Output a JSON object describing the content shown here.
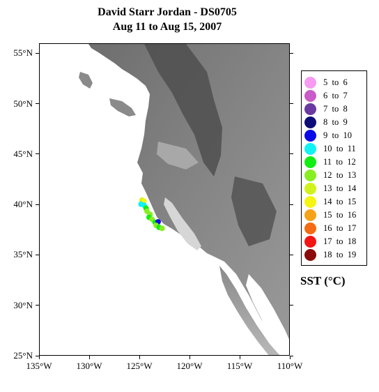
{
  "title": {
    "line1": "David Starr Jordan - DS0705",
    "line2": "Aug 11 to Aug 15, 2007"
  },
  "map": {
    "lon_range": [
      -135,
      -110
    ],
    "lat_range": [
      25,
      56
    ],
    "lat_ticks": [
      {
        "value": 55,
        "label": "55°N"
      },
      {
        "value": 50,
        "label": "50°N"
      },
      {
        "value": 45,
        "label": "45°N"
      },
      {
        "value": 40,
        "label": "40°N"
      },
      {
        "value": 35,
        "label": "35°N"
      },
      {
        "value": 30,
        "label": "30°N"
      },
      {
        "value": 25,
        "label": "25°N"
      }
    ],
    "lon_ticks": [
      {
        "value": -135,
        "label": "135°W"
      },
      {
        "value": -130,
        "label": "130°W"
      },
      {
        "value": -125,
        "label": "125°W"
      },
      {
        "value": -120,
        "label": "120°W"
      },
      {
        "value": -115,
        "label": "115°W"
      },
      {
        "value": -110,
        "label": "110°W"
      }
    ],
    "colors": {
      "ocean": "#ffffff",
      "land_low": "#c8c8c8",
      "land_mid": "#7a7a7a",
      "land_high": "#4a4a4a"
    }
  },
  "legend": {
    "items": [
      {
        "label": "5  to  6",
        "color": "#f79af2"
      },
      {
        "label": "6  to  7",
        "color": "#c95cc9"
      },
      {
        "label": "7  to  8",
        "color": "#6b3aa0"
      },
      {
        "label": "8  to  9",
        "color": "#0d0d7a"
      },
      {
        "label": "9  to  10",
        "color": "#0a0ae8"
      },
      {
        "label": "10  to  11",
        "color": "#11f2f2"
      },
      {
        "label": "11  to  12",
        "color": "#11ee11"
      },
      {
        "label": "12  to  13",
        "color": "#88ee22"
      },
      {
        "label": "13  to  14",
        "color": "#d2f21c"
      },
      {
        "label": "14  to  15",
        "color": "#f5f511"
      },
      {
        "label": "15  to  16",
        "color": "#f5a319"
      },
      {
        "label": "16  to  17",
        "color": "#f46b14"
      },
      {
        "label": "17  to  18",
        "color": "#f41414"
      },
      {
        "label": "18  to  19",
        "color": "#8b0a0a"
      }
    ],
    "units": "SST (°C)"
  },
  "observations": [
    {
      "lon": -124.8,
      "lat": 40.5,
      "sst_color": "#d2f21c"
    },
    {
      "lon": -124.6,
      "lat": 40.4,
      "sst_color": "#f5f511"
    },
    {
      "lon": -124.9,
      "lat": 40.1,
      "sst_color": "#11f2f2"
    },
    {
      "lon": -124.6,
      "lat": 40.0,
      "sst_color": "#11f2f2"
    },
    {
      "lon": -124.4,
      "lat": 39.7,
      "sst_color": "#11ee11"
    },
    {
      "lon": -124.3,
      "lat": 39.4,
      "sst_color": "#88ee22"
    },
    {
      "lon": -124.0,
      "lat": 39.1,
      "sst_color": "#88ee22"
    },
    {
      "lon": -124.1,
      "lat": 38.8,
      "sst_color": "#11ee11"
    },
    {
      "lon": -123.8,
      "lat": 38.6,
      "sst_color": "#88ee22"
    },
    {
      "lon": -123.5,
      "lat": 38.3,
      "sst_color": "#11ee11"
    },
    {
      "lon": -123.2,
      "lat": 38.35,
      "sst_color": "#0a0ae8"
    },
    {
      "lon": -123.4,
      "lat": 38.0,
      "sst_color": "#88ee22"
    },
    {
      "lon": -123.1,
      "lat": 37.8,
      "sst_color": "#11ee11"
    },
    {
      "lon": -122.8,
      "lat": 37.7,
      "sst_color": "#88ee22"
    }
  ]
}
